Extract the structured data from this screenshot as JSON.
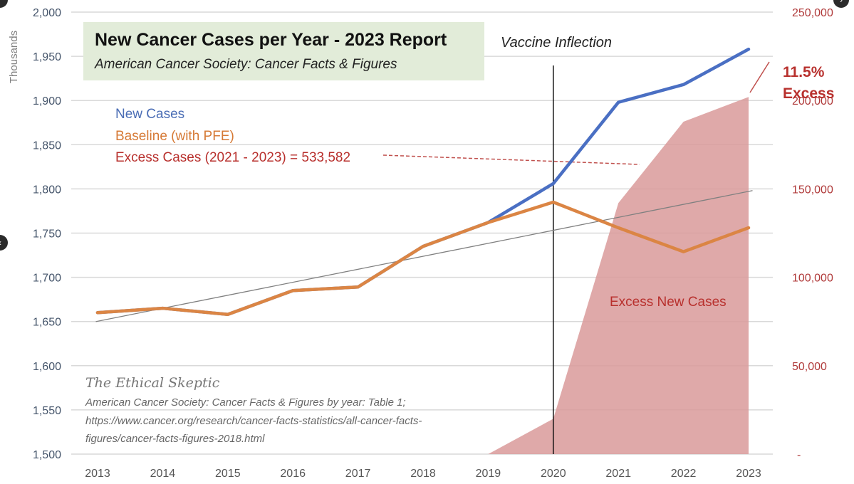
{
  "chart_data": {
    "type": "line",
    "title": "New Cancer Cases per Year - 2023 Report",
    "subtitle": "American Cancer Society: Cancer Facts & Figures",
    "categories": [
      "2013",
      "2014",
      "2015",
      "2016",
      "2017",
      "2018",
      "2019",
      "2020",
      "2021",
      "2022",
      "2023"
    ],
    "left_axis": {
      "label": "Thousands",
      "range": [
        1500,
        2000
      ],
      "ticks": [
        "1,500",
        "1,550",
        "1,600",
        "1,650",
        "1,700",
        "1,750",
        "1,800",
        "1,850",
        "1,900",
        "1,950",
        "2,000"
      ],
      "tick_values": [
        1500,
        1550,
        1600,
        1650,
        1700,
        1750,
        1800,
        1850,
        1900,
        1950,
        2000
      ]
    },
    "right_axis": {
      "range": [
        0,
        250000
      ],
      "ticks": [
        "-",
        "50,000",
        "100,000",
        "150,000",
        "200,000",
        "250,000"
      ],
      "tick_values": [
        0,
        50000,
        100000,
        150000,
        200000,
        250000
      ]
    },
    "series": [
      {
        "name": "New Cases",
        "axis": "left",
        "kind": "line",
        "color": "#4a6fc3",
        "values": [
          1660,
          1665,
          1658,
          1685,
          1689,
          1735,
          1762,
          1806,
          1898,
          1918,
          1958
        ]
      },
      {
        "name": "Baseline (with PFE)",
        "axis": "left",
        "kind": "line",
        "color": "#db8544",
        "values": [
          1660,
          1665,
          1658,
          1685,
          1689,
          1735,
          1762,
          1785,
          1756,
          1729,
          1756
        ]
      },
      {
        "name": "Trend",
        "axis": "left",
        "kind": "line",
        "color": "#808080",
        "values": [
          1650,
          null,
          null,
          null,
          null,
          null,
          null,
          null,
          null,
          null,
          1798
        ]
      },
      {
        "name": "Excess New Cases",
        "axis": "right",
        "kind": "area",
        "color": "#d99a9a",
        "x_start": "2019",
        "values": [
          null,
          null,
          null,
          null,
          null,
          null,
          0,
          20000,
          142000,
          188000,
          202000
        ]
      }
    ],
    "annotations": {
      "vertical_line_at": "2020",
      "vertical_line_label": "Vaccine Inflection",
      "excess_percent": "11.5%",
      "excess_label": "Excess",
      "area_label": "Excess New Cases",
      "excess_cases_text": "Excess Cases (2021 - 2023)  = 533,582"
    },
    "legend": [
      "New Cases",
      "Baseline (with PFE)",
      "Excess Cases (2021 - 2023)  = 533,582"
    ],
    "legend_position": "top-left",
    "grid": true
  },
  "labels": {
    "title": "New Cancer Cases per Year - 2023 Report",
    "subtitle": "American Cancer Society: Cancer Facts & Figures",
    "legend_new": "New Cases",
    "legend_base": "Baseline (with PFE)",
    "legend_excess": "Excess Cases (2021 - 2023)  = 533,582",
    "vaccine": "Vaccine Inflection",
    "pct": "11.5%",
    "pct_label": "Excess",
    "area_label": "Excess New Cases",
    "signature": "The Ethical Skeptic",
    "source1": "American Cancer Society:  Cancer Facts & Figures by year: Table  1;",
    "source2": "https://www.cancer.org/research/cancer-facts-statistics/all-cancer-facts-",
    "source3": "figures/cancer-facts-figures-2018.html",
    "ylabel": "Thousands"
  },
  "nav": {
    "prev_icon": "‹",
    "next_icon": "›"
  }
}
